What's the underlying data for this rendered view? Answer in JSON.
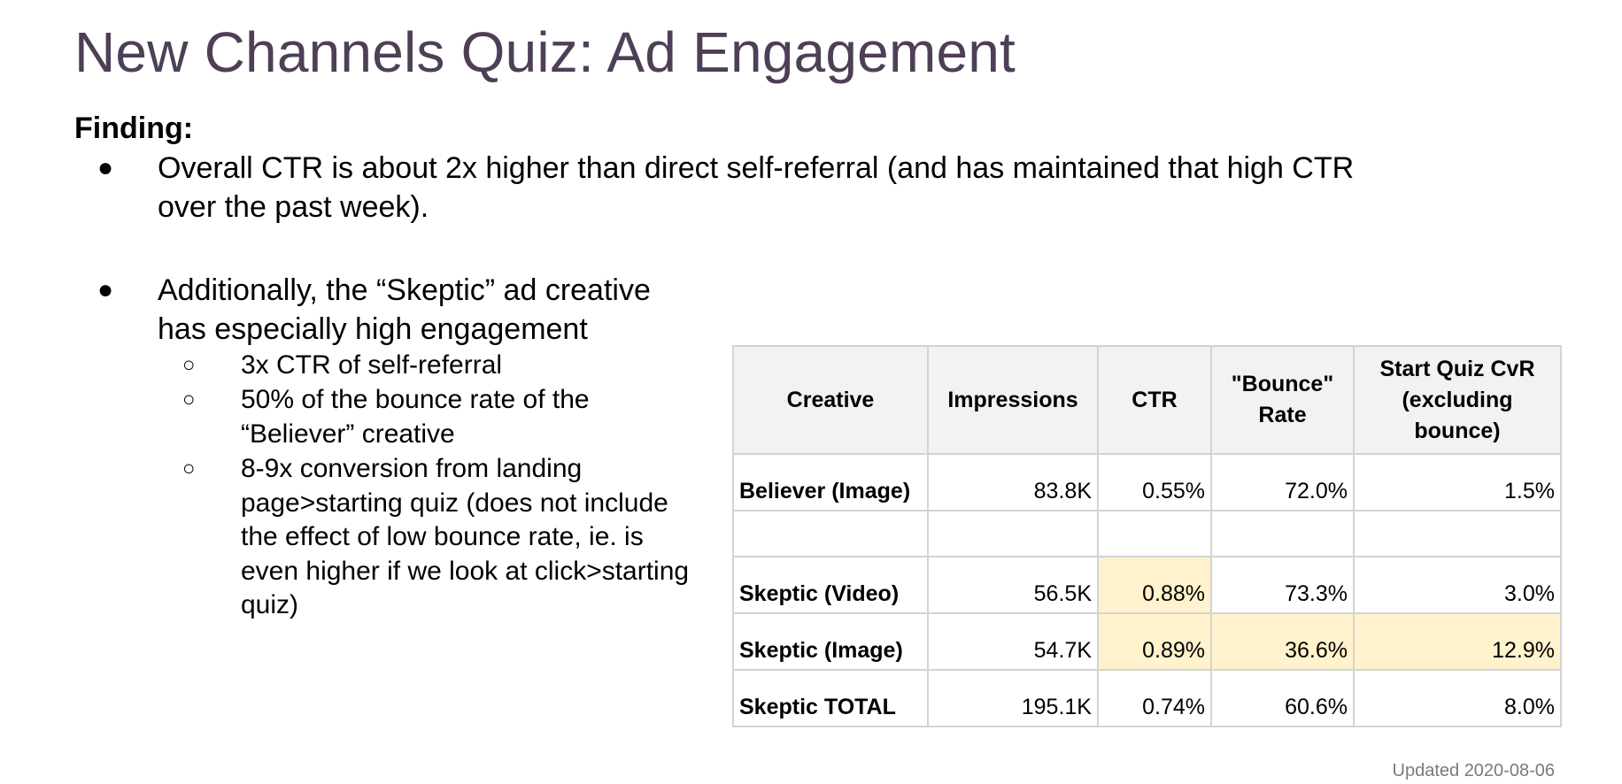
{
  "title": "New Channels Quiz: Ad Engagement",
  "finding_label": "Finding:",
  "bullets": [
    {
      "marker": "●",
      "lines": [
        "Overall CTR is about 2x higher than direct self-referral (and has maintained that high CTR",
        "over the past week)."
      ]
    },
    {
      "marker": "●",
      "lines": [
        "Additionally, the “Skeptic” ad creative",
        "has especially high engagement"
      ],
      "sub_items": [
        {
          "marker": "○",
          "lines": [
            "3x CTR of self-referral"
          ]
        },
        {
          "marker": "○",
          "lines": [
            "50% of the bounce rate of the",
            "“Believer” creative"
          ]
        },
        {
          "marker": "○",
          "lines": [
            "8-9x conversion from landing",
            "page>starting quiz (does not include",
            "the effect of low bounce rate, ie. is",
            "even higher if we look at click>starting",
            "quiz)"
          ]
        }
      ]
    }
  ],
  "table": {
    "headers": [
      [
        "Creative"
      ],
      [
        "Impressions"
      ],
      [
        "CTR"
      ],
      [
        "\"Bounce\"",
        "Rate"
      ],
      [
        "Start Quiz CvR",
        "(excluding",
        "bounce)"
      ]
    ],
    "rows": [
      {
        "cells": [
          "Believer (Image)",
          "83.8K",
          "0.55%",
          "72.0%",
          "1.5%"
        ],
        "highlight": [
          false,
          false,
          false,
          false,
          false
        ]
      },
      {
        "cells": [
          "",
          "",
          "",
          "",
          ""
        ],
        "highlight": [
          false,
          false,
          false,
          false,
          false
        ]
      },
      {
        "cells": [
          "Skeptic (Video)",
          "56.5K",
          "0.88%",
          "73.3%",
          "3.0%"
        ],
        "highlight": [
          false,
          false,
          true,
          false,
          false
        ]
      },
      {
        "cells": [
          "Skeptic (Image)",
          "54.7K",
          "0.89%",
          "36.6%",
          "12.9%"
        ],
        "highlight": [
          false,
          false,
          true,
          true,
          true
        ]
      },
      {
        "cells": [
          "Skeptic TOTAL",
          "195.1K",
          "0.74%",
          "60.6%",
          "8.0%"
        ],
        "highlight": [
          false,
          false,
          false,
          false,
          false
        ]
      }
    ],
    "highlight_color": "#fff2cc",
    "header_bg": "#f2f2f2"
  },
  "footer": "Updated 2020-08-06"
}
